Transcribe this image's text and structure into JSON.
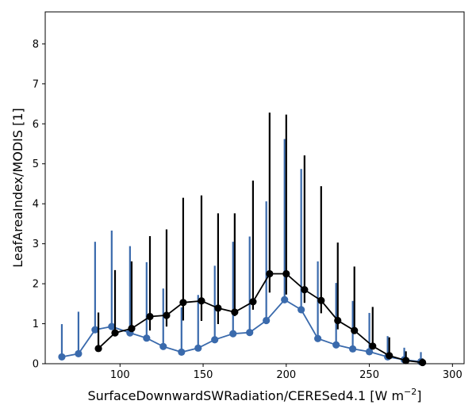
{
  "chart_data": {
    "type": "line",
    "title": "",
    "xlabel_text": "SurfaceDownwardSWRadiation/CERESed4.1 [W m",
    "xlabel_sup": "−2",
    "xlabel_tail": "]",
    "ylabel": "LeafAreaIndex/MODIS [1]",
    "xlim": [
      55,
      307
    ],
    "ylim": [
      0,
      8.8
    ],
    "xticks": [
      100,
      150,
      200,
      250,
      300
    ],
    "yticks": [
      0,
      1,
      2,
      3,
      4,
      5,
      6,
      7,
      8
    ],
    "grid": false,
    "legend": "none",
    "series": [
      {
        "color": "#3a6aac",
        "x": [
          65,
          75,
          85,
          95,
          106,
          116,
          126,
          137,
          147,
          157,
          168,
          178,
          188,
          199,
          209,
          219,
          230,
          240,
          250,
          261,
          271,
          281
        ],
        "y": [
          0.17,
          0.25,
          0.85,
          0.93,
          0.77,
          0.64,
          0.43,
          0.29,
          0.39,
          0.6,
          0.75,
          0.78,
          1.08,
          1.6,
          1.35,
          0.63,
          0.47,
          0.37,
          0.3,
          0.17,
          0.1,
          0.05
        ],
        "err_low": [
          0.0,
          0.0,
          0.0,
          0.0,
          0.0,
          0.0,
          0.0,
          0.0,
          0.0,
          0.0,
          0.0,
          0.0,
          0.0,
          0.0,
          0.0,
          0.0,
          0.0,
          0.0,
          0.0,
          0.0,
          0.0,
          0.0
        ],
        "err_high": [
          0.82,
          1.05,
          2.2,
          2.4,
          2.17,
          1.9,
          1.45,
          1.12,
          1.33,
          1.85,
          2.3,
          2.4,
          2.98,
          4.02,
          3.52,
          1.93,
          1.55,
          1.2,
          0.97,
          0.52,
          0.3,
          0.24
        ]
      },
      {
        "color": "#000000",
        "x": [
          87,
          97,
          107,
          118,
          128,
          138,
          149,
          159,
          169,
          180,
          190,
          200,
          211,
          221,
          231,
          241,
          252,
          262,
          272,
          282
        ],
        "y": [
          0.38,
          0.77,
          0.88,
          1.18,
          1.21,
          1.53,
          1.57,
          1.39,
          1.29,
          1.55,
          2.25,
          2.25,
          1.85,
          1.58,
          1.08,
          0.83,
          0.44,
          0.2,
          0.08,
          0.03
        ],
        "err_low": [
          0.0,
          0.0,
          0.0,
          0.35,
          0.28,
          0.45,
          0.5,
          0.4,
          0.1,
          0.2,
          0.47,
          0.52,
          0.33,
          0.32,
          0.22,
          0.08,
          0.0,
          0.0,
          0.0,
          0.0
        ],
        "err_high": [
          0.9,
          1.57,
          1.68,
          2.01,
          2.15,
          2.62,
          2.64,
          2.37,
          2.47,
          3.03,
          4.03,
          3.98,
          3.36,
          2.86,
          1.95,
          1.6,
          0.98,
          0.46,
          0.23,
          0.1
        ]
      }
    ]
  }
}
